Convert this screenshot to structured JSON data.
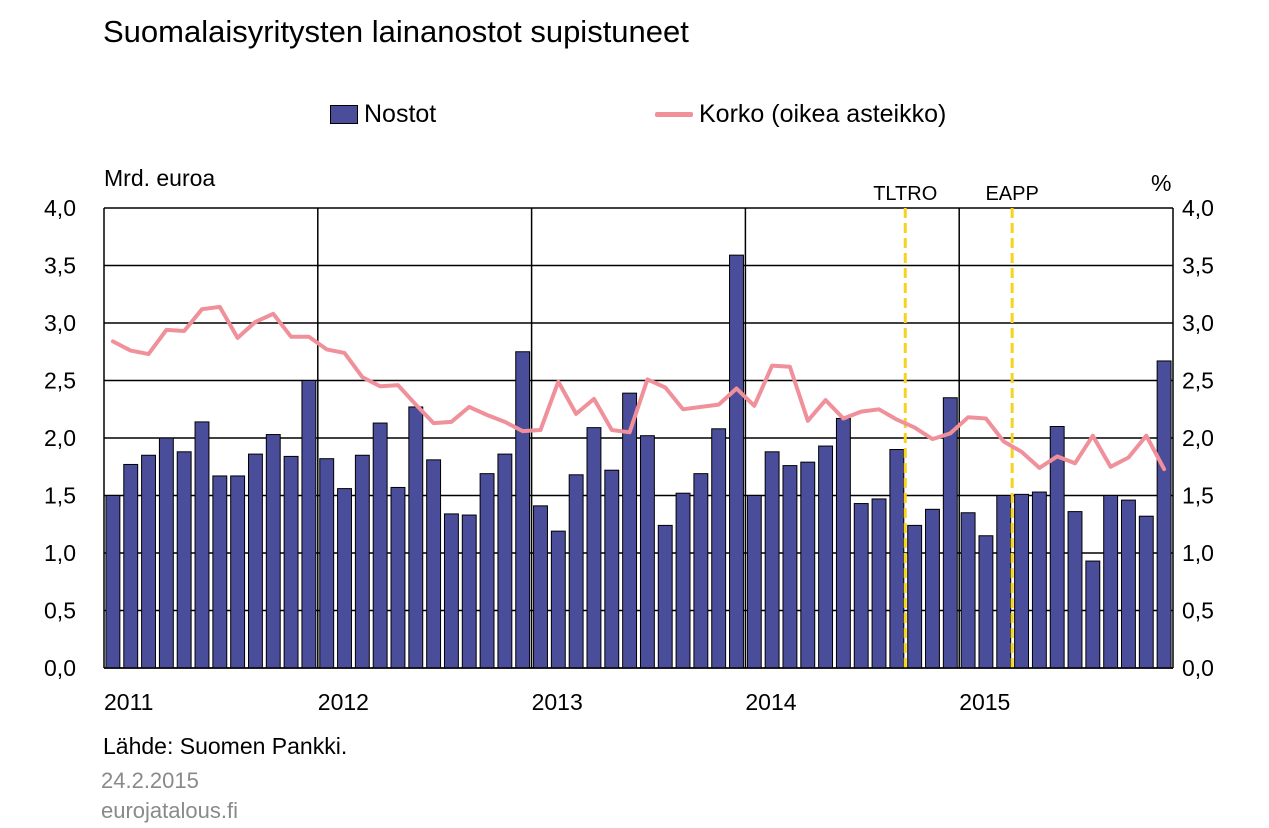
{
  "title": "Suomalaisyritysten lainanostot supistuneet",
  "legend": {
    "bar_label": "Nostot",
    "line_label": "Korko (oikea asteikko)"
  },
  "units": {
    "left": "Mrd. euroa",
    "right": "%"
  },
  "source": "Lähde: Suomen Pankki.",
  "date": "24.2.2015",
  "site": "eurojatalous.fi",
  "colors": {
    "bar": "#4a4d9a",
    "line": "#f0909a",
    "marker": "#f5d31f",
    "grid": "#000000"
  },
  "chart_data": {
    "type": "bar",
    "x": [
      "2011-01",
      "2011-02",
      "2011-03",
      "2011-04",
      "2011-05",
      "2011-06",
      "2011-07",
      "2011-08",
      "2011-09",
      "2011-10",
      "2011-11",
      "2011-12",
      "2012-01",
      "2012-02",
      "2012-03",
      "2012-04",
      "2012-05",
      "2012-06",
      "2012-07",
      "2012-08",
      "2012-09",
      "2012-10",
      "2012-11",
      "2012-12",
      "2013-01",
      "2013-02",
      "2013-03",
      "2013-04",
      "2013-05",
      "2013-06",
      "2013-07",
      "2013-08",
      "2013-09",
      "2013-10",
      "2013-11",
      "2013-12",
      "2014-01",
      "2014-02",
      "2014-03",
      "2014-04",
      "2014-05",
      "2014-06",
      "2014-07",
      "2014-08",
      "2014-09",
      "2014-10",
      "2014-11",
      "2014-12",
      "2015-01",
      "2015-02",
      "2015-03",
      "2015-04",
      "2015-05",
      "2015-06",
      "2015-07",
      "2015-08",
      "2015-09",
      "2015-10",
      "2015-11",
      "2015-12"
    ],
    "year_labels": [
      "2011",
      "2012",
      "2013",
      "2014",
      "2015"
    ],
    "series": [
      {
        "name": "Nostot",
        "type": "bar",
        "axis": "left",
        "values": [
          1.5,
          1.77,
          1.85,
          2.0,
          1.88,
          2.14,
          1.67,
          1.67,
          1.86,
          2.03,
          1.84,
          2.5,
          1.82,
          1.56,
          1.85,
          2.13,
          1.57,
          2.27,
          1.81,
          1.34,
          1.33,
          1.69,
          1.86,
          2.75,
          1.41,
          1.19,
          1.68,
          2.09,
          1.72,
          2.39,
          2.02,
          1.24,
          1.52,
          1.69,
          2.08,
          3.59,
          1.5,
          1.88,
          1.76,
          1.79,
          1.93,
          2.17,
          1.43,
          1.47,
          1.9,
          1.24,
          1.38,
          2.35,
          1.35,
          1.15,
          1.5,
          1.51,
          1.53,
          2.1,
          1.36,
          0.93,
          1.5,
          1.46,
          1.32,
          2.67
        ]
      },
      {
        "name": "Korko (oikea asteikko)",
        "type": "line",
        "axis": "right",
        "values": [
          2.84,
          2.76,
          2.73,
          2.94,
          2.93,
          3.12,
          3.14,
          2.87,
          3.01,
          3.08,
          2.88,
          2.88,
          2.77,
          2.74,
          2.53,
          2.45,
          2.46,
          2.29,
          2.13,
          2.14,
          2.27,
          2.2,
          2.14,
          2.06,
          2.07,
          2.49,
          2.21,
          2.34,
          2.07,
          2.05,
          2.51,
          2.44,
          2.25,
          2.27,
          2.29,
          2.43,
          2.28,
          2.63,
          2.62,
          2.15,
          2.33,
          2.17,
          2.23,
          2.25,
          2.16,
          2.09,
          1.99,
          2.04,
          2.18,
          2.17,
          1.97,
          1.88,
          1.74,
          1.84,
          1.78,
          2.02,
          1.75,
          1.83,
          2.02,
          1.73
        ]
      }
    ],
    "ylim_left": [
      0,
      4
    ],
    "ylim_right": [
      0,
      4
    ],
    "yticks": [
      "0,0",
      "0,5",
      "1,0",
      "1,5",
      "2,0",
      "2,5",
      "3,0",
      "3,5",
      "4,0"
    ],
    "annotations": [
      {
        "label": "TLTRO",
        "after_index": 44
      },
      {
        "label": "EAPP",
        "after_index": 50
      }
    ],
    "grid": true,
    "legend_position": "top"
  }
}
